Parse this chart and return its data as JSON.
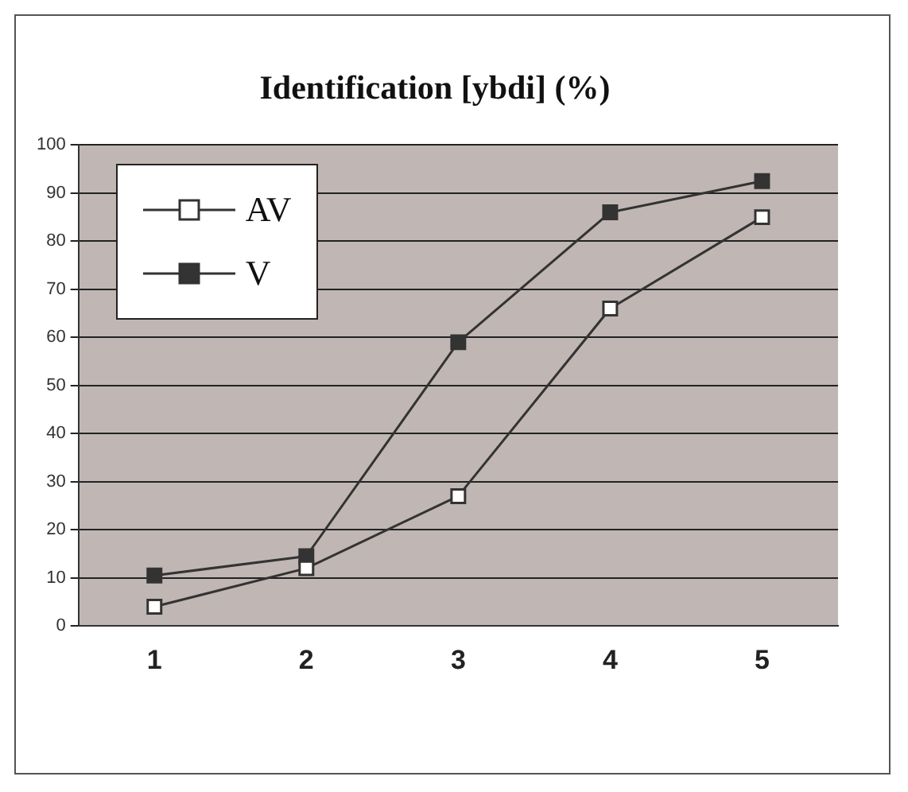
{
  "chart_data": {
    "type": "line",
    "title": "Identification [ybdi] (%)",
    "categories": [
      "1",
      "2",
      "3",
      "4",
      "5"
    ],
    "series": [
      {
        "name": "AV",
        "color": "#333333",
        "colors": [
          "#ffffff",
          "#ffffff",
          "#ffffff",
          "#ffffff",
          "#ffffff"
        ],
        "values": [
          4,
          12,
          27,
          66,
          85
        ]
      },
      {
        "name": "V",
        "color": "#333333",
        "colors": [
          "#333333",
          "#333333",
          "#333333",
          "#333333",
          "#333333"
        ],
        "values": [
          10.5,
          14.5,
          59,
          86,
          92.5
        ]
      }
    ],
    "ylim": [
      0,
      100
    ],
    "yticks": [
      0,
      10,
      20,
      30,
      40,
      50,
      60,
      70,
      80,
      90,
      100
    ],
    "grid": "y",
    "legend": "top left",
    "marker": "square",
    "line_style": "solid"
  }
}
